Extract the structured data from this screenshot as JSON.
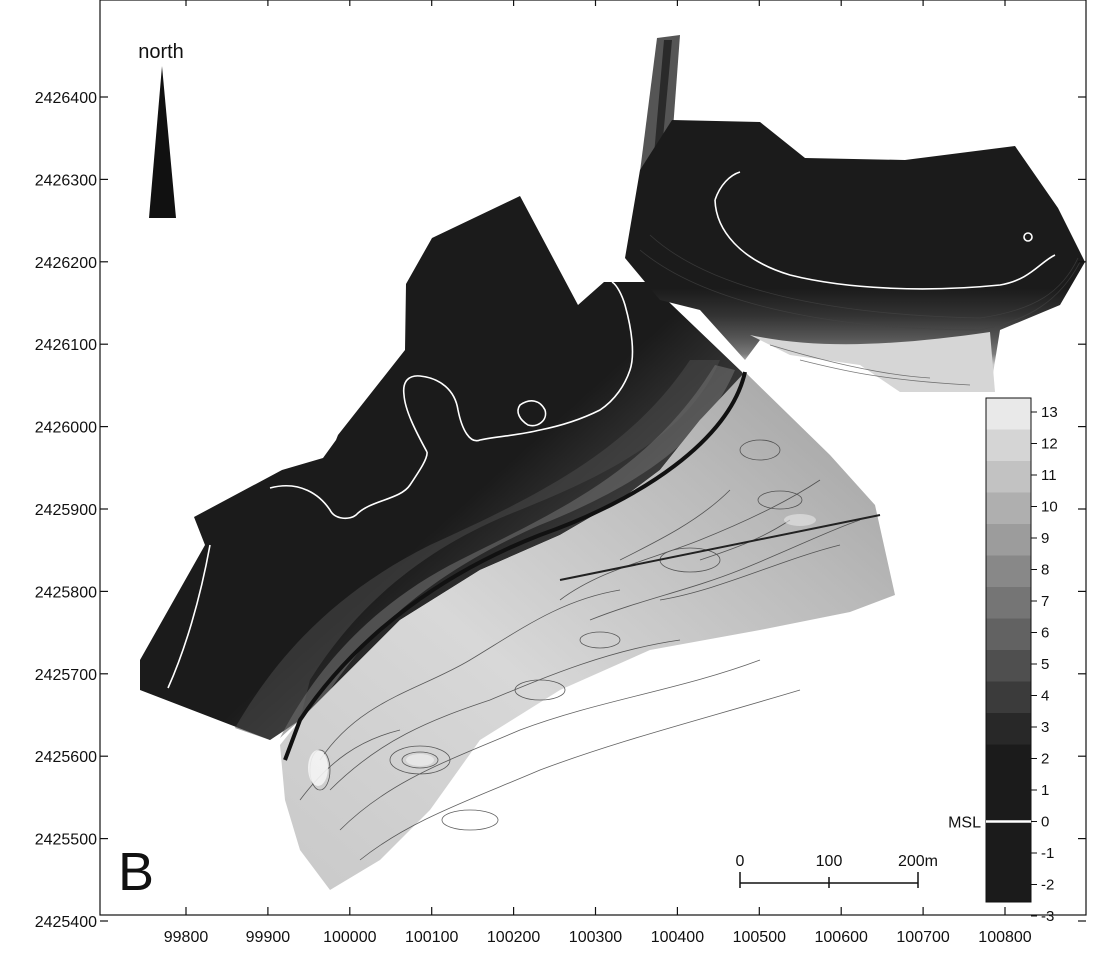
{
  "map": {
    "panel_label": "B",
    "north_label": "north",
    "x_ticks": [
      "99800",
      "99900",
      "100000",
      "100100",
      "100200",
      "100300",
      "100400",
      "100500",
      "100600",
      "100700",
      "100800"
    ],
    "y_ticks": [
      "2426400",
      "2426300",
      "2426200",
      "2426100",
      "2426000",
      "2425900",
      "2425800",
      "2425700",
      "2425600",
      "2425500",
      "2425400"
    ],
    "scale_bar": {
      "labels": [
        "0",
        "100",
        "200m"
      ]
    },
    "legend": {
      "levels": [
        "13",
        "12",
        "11",
        "10",
        "9",
        "8",
        "7",
        "6",
        "5",
        "4",
        "3",
        "2",
        "1",
        "0",
        "-1",
        "-2",
        "-3"
      ],
      "msl_label": "MSL"
    },
    "colors": {
      "deep": "#1b1b1b",
      "land_base": "#a8a8a8",
      "high": "#f2f2f2",
      "contour": "#3a3a3a",
      "msl_line": "#ffffff"
    }
  }
}
